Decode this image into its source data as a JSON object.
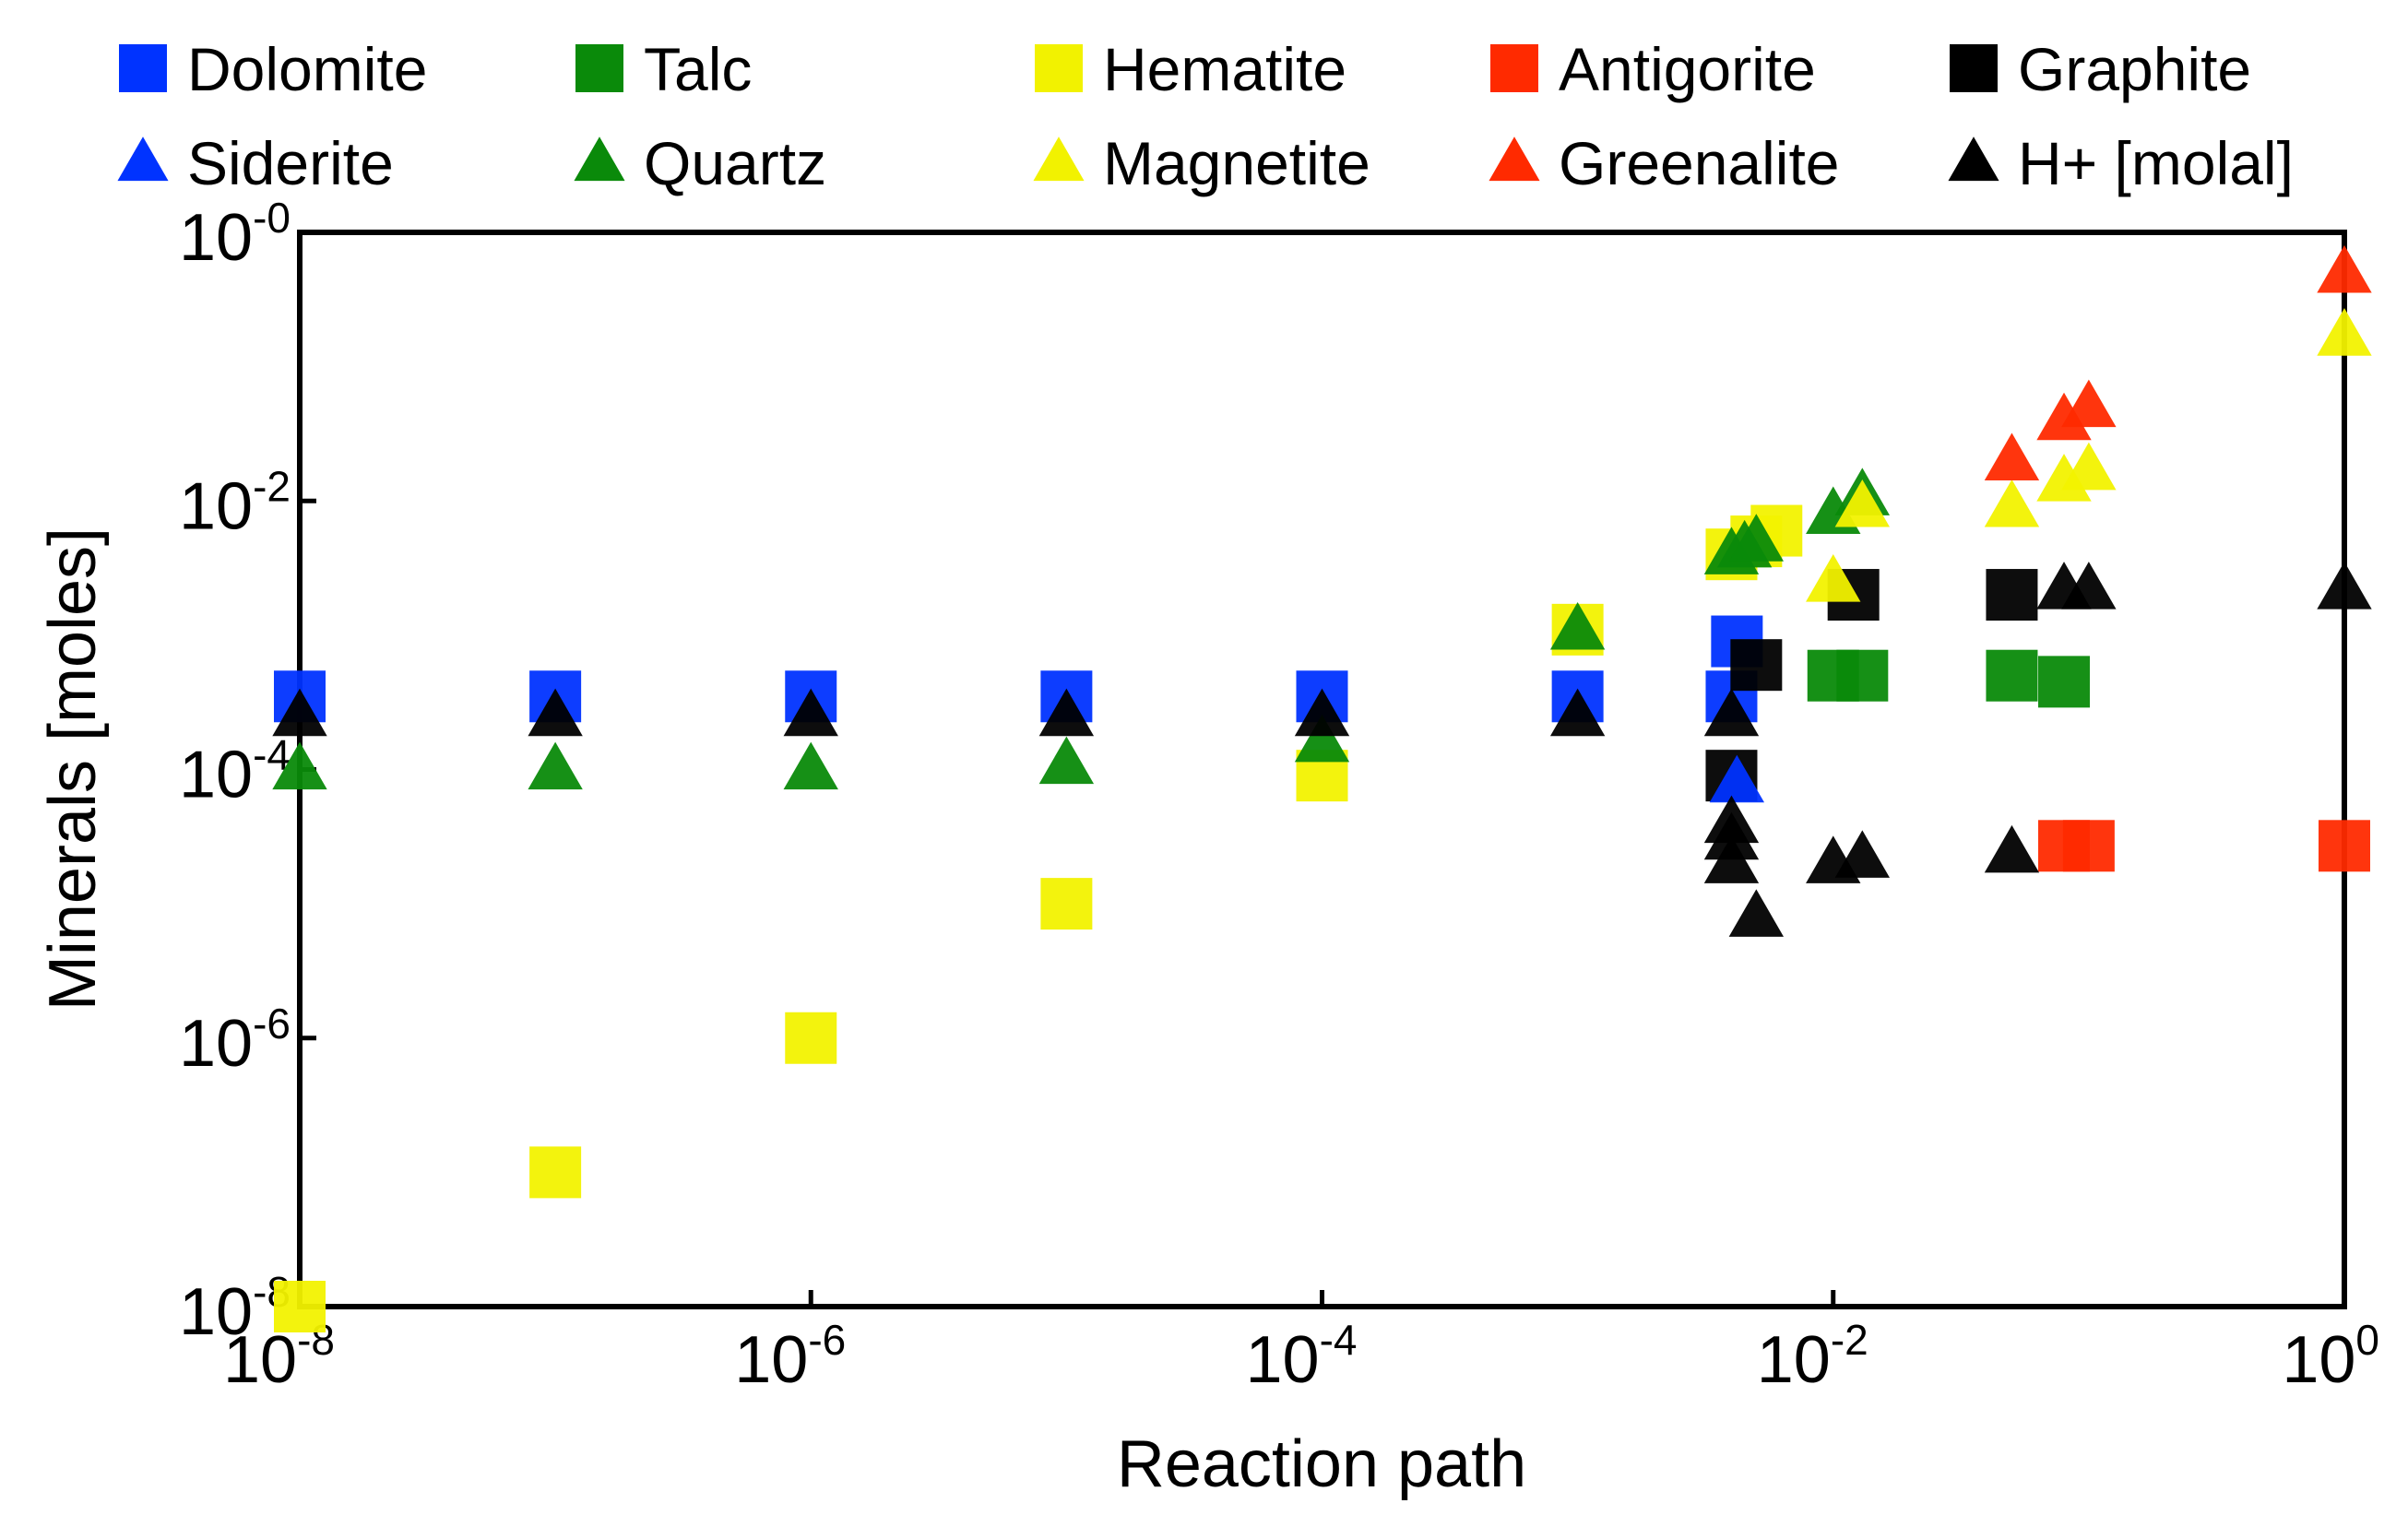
{
  "chart_data": {
    "type": "scatter",
    "title": "",
    "xlabel": "Reaction path",
    "ylabel": "Minerals [moles]",
    "x_scale": "log",
    "y_scale": "log",
    "xlim_exponent": [
      -8,
      0
    ],
    "ylim_exponent": [
      -8,
      0
    ],
    "x_ticks": [
      {
        "base": "10",
        "exp": "-8"
      },
      {
        "base": "10",
        "exp": "-6"
      },
      {
        "base": "10",
        "exp": "-4"
      },
      {
        "base": "10",
        "exp": "-2"
      },
      {
        "base": "10",
        "exp": "0"
      }
    ],
    "y_ticks": [
      {
        "base": "10",
        "exp": "-0"
      },
      {
        "base": "10",
        "exp": "-2"
      },
      {
        "base": "10",
        "exp": "-4"
      },
      {
        "base": "10",
        "exp": "-6"
      },
      {
        "base": "10",
        "exp": "-8"
      }
    ],
    "grid": false,
    "legend_position": "top",
    "series": [
      {
        "name": "Dolomite",
        "marker": "square",
        "color": "#0033ff",
        "points": [
          [
            1e-08,
            0.00035
          ],
          [
            1e-07,
            0.00035
          ],
          [
            1e-06,
            0.00035
          ],
          [
            1e-05,
            0.00035
          ],
          [
            0.0001,
            0.00035
          ],
          [
            0.001,
            0.00035
          ],
          [
            0.004,
            0.00035
          ],
          [
            0.0042,
            0.0009
          ]
        ]
      },
      {
        "name": "Talc",
        "marker": "square",
        "color": "#0a8a0a",
        "points": [
          [
            0.01,
            0.0005
          ],
          [
            0.013,
            0.0005
          ],
          [
            0.05,
            0.0005
          ],
          [
            0.08,
            0.00045
          ]
        ]
      },
      {
        "name": "Hematite",
        "marker": "square",
        "color": "#f2f200",
        "points": [
          [
            1e-08,
            1e-08
          ],
          [
            1e-07,
            1e-07
          ],
          [
            1e-06,
            1e-06
          ],
          [
            1e-05,
            1e-05
          ],
          [
            0.0001,
            9e-05
          ],
          [
            0.001,
            0.0011
          ],
          [
            0.004,
            0.004
          ],
          [
            0.005,
            0.005
          ],
          [
            0.006,
            0.006
          ]
        ]
      },
      {
        "name": "Antigorite",
        "marker": "square",
        "color": "#ff2a00",
        "points": [
          [
            0.08,
            2.7e-05
          ],
          [
            0.1,
            2.7e-05
          ],
          [
            1,
            2.7e-05
          ]
        ]
      },
      {
        "name": "Graphite",
        "marker": "square",
        "color": "#000000",
        "points": [
          [
            0.004,
            9e-05
          ],
          [
            0.005,
            0.0006
          ],
          [
            0.012,
            0.002
          ],
          [
            0.05,
            0.002
          ]
        ]
      },
      {
        "name": "Siderite",
        "marker": "triangle",
        "color": "#0033ff",
        "points": [
          [
            0.0042,
            8e-05
          ]
        ]
      },
      {
        "name": "Quartz",
        "marker": "triangle",
        "color": "#0a8a0a",
        "points": [
          [
            1e-08,
            0.0001
          ],
          [
            1e-07,
            0.0001
          ],
          [
            1e-06,
            0.0001
          ],
          [
            1e-05,
            0.00011
          ],
          [
            0.0001,
            0.00016
          ],
          [
            0.001,
            0.0011
          ],
          [
            0.004,
            0.004
          ],
          [
            0.0045,
            0.0045
          ],
          [
            0.005,
            0.005
          ],
          [
            0.01,
            0.008
          ],
          [
            0.013,
            0.011
          ]
        ]
      },
      {
        "name": "Magnetite",
        "marker": "triangle",
        "color": "#f2f200",
        "points": [
          [
            0.01,
            0.0025
          ],
          [
            0.013,
            0.009
          ],
          [
            0.05,
            0.009
          ],
          [
            0.08,
            0.014
          ],
          [
            0.1,
            0.017
          ],
          [
            1,
            0.17
          ]
        ]
      },
      {
        "name": "Greenalite",
        "marker": "triangle",
        "color": "#ff2a00",
        "points": [
          [
            0.05,
            0.02
          ],
          [
            0.08,
            0.04
          ],
          [
            0.1,
            0.05
          ],
          [
            1,
            0.5
          ]
        ]
      },
      {
        "name": "H+ [molal]",
        "marker": "triangle",
        "color": "#000000",
        "points": [
          [
            1e-08,
            0.00025
          ],
          [
            1e-07,
            0.00025
          ],
          [
            1e-06,
            0.00025
          ],
          [
            1e-05,
            0.00025
          ],
          [
            0.0001,
            0.00025
          ],
          [
            0.001,
            0.00025
          ],
          [
            0.004,
            0.00025
          ],
          [
            0.004,
            4e-05
          ],
          [
            0.004,
            3e-05
          ],
          [
            0.004,
            2e-05
          ],
          [
            0.005,
            8e-06
          ],
          [
            0.01,
            2e-05
          ],
          [
            0.013,
            2.2e-05
          ],
          [
            0.05,
            2.4e-05
          ],
          [
            0.08,
            0.0022
          ],
          [
            0.1,
            0.0022
          ],
          [
            1,
            0.0022
          ]
        ]
      }
    ]
  }
}
